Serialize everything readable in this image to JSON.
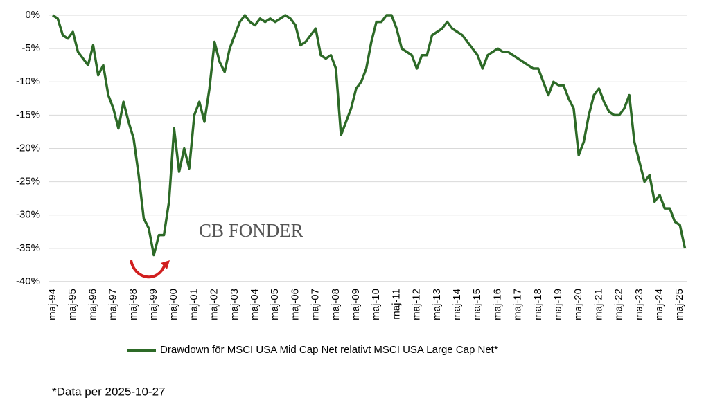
{
  "chart_data": {
    "type": "line",
    "categories": [
      "maj-94",
      null,
      null,
      null,
      "maj-95",
      null,
      null,
      null,
      "maj-96",
      null,
      null,
      null,
      "maj-97",
      null,
      null,
      null,
      "maj-98",
      null,
      null,
      null,
      "maj-99",
      null,
      null,
      null,
      "maj-00",
      null,
      null,
      null,
      "maj-01",
      null,
      null,
      null,
      "maj-02",
      null,
      null,
      null,
      "maj-03",
      null,
      null,
      null,
      "maj-04",
      null,
      null,
      null,
      "maj-05",
      null,
      null,
      null,
      "maj-06",
      null,
      null,
      null,
      "maj-07",
      null,
      null,
      null,
      "maj-08",
      null,
      null,
      null,
      "maj-09",
      null,
      null,
      null,
      "maj-10",
      null,
      null,
      null,
      "maj-11",
      null,
      null,
      null,
      "maj-12",
      null,
      null,
      null,
      "maj-13",
      null,
      null,
      null,
      "maj-14",
      null,
      null,
      null,
      "maj-15",
      null,
      null,
      null,
      "maj-16",
      null,
      null,
      null,
      "maj-17",
      null,
      null,
      null,
      "maj-18",
      null,
      null,
      null,
      "maj-19",
      null,
      null,
      null,
      "maj-20",
      null,
      null,
      null,
      "maj-21",
      null,
      null,
      null,
      "maj-22",
      null,
      null,
      null,
      "maj-23",
      null,
      null,
      null,
      "maj-24",
      null,
      null,
      null,
      "maj-25",
      null
    ],
    "series": [
      {
        "name": "Drawdown för MSCI USA Mid Cap Net relativt MSCI USA Large Cap Net*",
        "color": "#2d6a27",
        "values": [
          0,
          -0.5,
          -3,
          -3.5,
          -2.5,
          -5.5,
          -6.5,
          -7.5,
          -4.5,
          -9,
          -7.5,
          -12,
          -14,
          -17,
          -13,
          -16,
          -18.5,
          -24,
          -30.5,
          -32,
          -36,
          -33,
          -33,
          -28,
          -17,
          -23.5,
          -20,
          -23,
          -15,
          -13,
          -16,
          -11,
          -4,
          -7,
          -8.5,
          -5,
          -3,
          -1,
          0,
          -1,
          -1.5,
          -0.5,
          -1,
          -0.5,
          -1,
          -0.5,
          0,
          -0.5,
          -1.5,
          -4.5,
          -4,
          -3,
          -2,
          -6,
          -6.5,
          -6,
          -8,
          -18,
          -16,
          -14,
          -11,
          -10,
          -8,
          -4,
          -1,
          -1,
          0,
          0,
          -2,
          -5,
          -5.5,
          -6,
          -8,
          -6,
          -6,
          -3,
          -2.5,
          -2,
          -1,
          -2,
          -2.5,
          -3,
          -4,
          -5,
          -6,
          -8,
          -6,
          -5.5,
          -5,
          -5.5,
          -5.5,
          -6,
          -6.5,
          -7,
          -7.5,
          -8,
          -8,
          -10,
          -12,
          -10,
          -10.5,
          -10.5,
          -12.5,
          -14,
          -21,
          -19,
          -15,
          -12,
          -11,
          -13,
          -14.5,
          -15,
          -15,
          -14,
          -12,
          -19,
          -22,
          -25,
          -24,
          -28,
          -27,
          -29,
          -29,
          -31,
          -31.5,
          -35
        ]
      }
    ],
    "ylim": [
      -40,
      0
    ],
    "yticks": [
      {
        "value": 0,
        "label": "0%"
      },
      {
        "value": -5,
        "label": "-5%"
      },
      {
        "value": -10,
        "label": "-10%"
      },
      {
        "value": -15,
        "label": "-15%"
      },
      {
        "value": -20,
        "label": "-20%"
      },
      {
        "value": -25,
        "label": "-25%"
      },
      {
        "value": -30,
        "label": "-30%"
      },
      {
        "value": -35,
        "label": "-35%"
      },
      {
        "value": -40,
        "label": "-40%"
      }
    ],
    "grid": true,
    "watermark": "CB FONDER",
    "footnote": "*Data per 2025-10-27"
  }
}
